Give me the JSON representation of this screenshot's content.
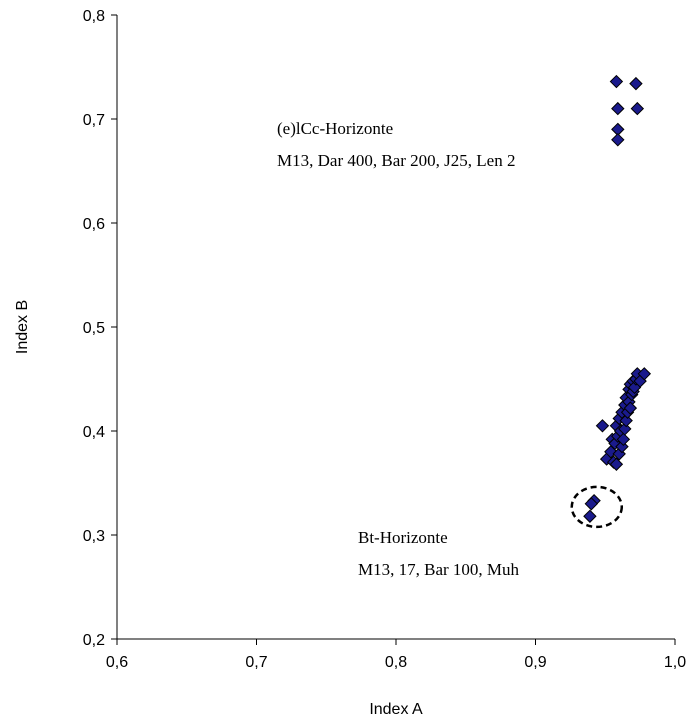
{
  "chart_data": {
    "type": "scatter",
    "xlabel": "Index A",
    "ylabel": "Index B",
    "xlim": [
      0.6,
      1.0
    ],
    "ylim": [
      0.2,
      0.8
    ],
    "xticks": [
      0.6,
      0.7,
      0.8,
      0.9,
      1.0
    ],
    "yticks": [
      0.2,
      0.3,
      0.4,
      0.5,
      0.6,
      0.7,
      0.8
    ],
    "xtick_labels": [
      "0,6",
      "0,7",
      "0,8",
      "0,9",
      "1,0"
    ],
    "ytick_labels": [
      "0,2",
      "0,3",
      "0,4",
      "0,5",
      "0,6",
      "0,7",
      "0,8"
    ],
    "grid": false,
    "marker": "diamond",
    "marker_color": "#1a1a8c",
    "marker_edge_color": "#000000",
    "groups": [
      {
        "label_lines": [
          "(e)lCc-Horizonte",
          "M13,  Dar 400, Bar 200, J25, Len 2"
        ],
        "points": [
          [
            0.958,
            0.736
          ],
          [
            0.972,
            0.734
          ],
          [
            0.959,
            0.71
          ],
          [
            0.973,
            0.71
          ],
          [
            0.959,
            0.69
          ],
          [
            0.959,
            0.68
          ]
        ]
      },
      {
        "label_lines": [
          "Bt-Horizonte",
          "M13, 17, Bar 100,  Muh"
        ],
        "points": [
          [
            0.948,
            0.405
          ],
          [
            0.951,
            0.373
          ],
          [
            0.954,
            0.38
          ],
          [
            0.955,
            0.392
          ],
          [
            0.956,
            0.37
          ],
          [
            0.957,
            0.388
          ],
          [
            0.958,
            0.405
          ],
          [
            0.958,
            0.368
          ],
          [
            0.959,
            0.395
          ],
          [
            0.96,
            0.378
          ],
          [
            0.96,
            0.412
          ],
          [
            0.961,
            0.4
          ],
          [
            0.962,
            0.385
          ],
          [
            0.962,
            0.418
          ],
          [
            0.963,
            0.392
          ],
          [
            0.964,
            0.425
          ],
          [
            0.964,
            0.402
          ],
          [
            0.965,
            0.41
          ],
          [
            0.965,
            0.432
          ],
          [
            0.966,
            0.418
          ],
          [
            0.967,
            0.44
          ],
          [
            0.967,
            0.428
          ],
          [
            0.968,
            0.422
          ],
          [
            0.968,
            0.445
          ],
          [
            0.969,
            0.435
          ],
          [
            0.97,
            0.438
          ],
          [
            0.97,
            0.448
          ],
          [
            0.971,
            0.442
          ],
          [
            0.972,
            0.45
          ],
          [
            0.973,
            0.455
          ],
          [
            0.975,
            0.448
          ],
          [
            0.978,
            0.455
          ]
        ]
      },
      {
        "circled": true,
        "points": [
          [
            0.942,
            0.333
          ],
          [
            0.94,
            0.33
          ],
          [
            0.939,
            0.318
          ]
        ]
      }
    ]
  }
}
